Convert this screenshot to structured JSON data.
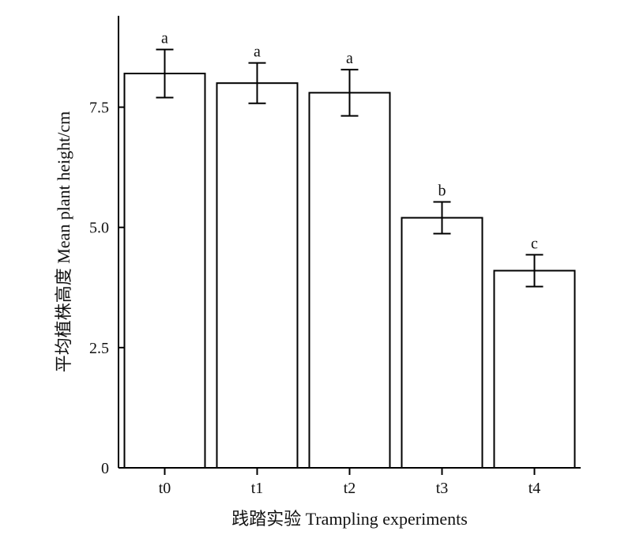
{
  "chart_data": {
    "type": "bar",
    "categories": [
      "t0",
      "t1",
      "t2",
      "t3",
      "t4"
    ],
    "values": [
      8.2,
      8.0,
      7.8,
      5.2,
      4.1
    ],
    "errors": [
      0.5,
      0.42,
      0.48,
      0.33,
      0.33
    ],
    "significance": [
      "a",
      "a",
      "a",
      "b",
      "c"
    ],
    "xlabel": "践踏实验 Trampling experiments",
    "ylabel": "平均植株高度 Mean plant height/cm",
    "ylim": [
      0,
      9.4
    ],
    "yticks": [
      0,
      2.5,
      5.0,
      7.5
    ],
    "ytick_labels": [
      "0",
      "2.5",
      "5.0",
      "7.5"
    ],
    "grid": false,
    "bar_fill": "#ffffff",
    "bar_stroke": "#000000"
  }
}
